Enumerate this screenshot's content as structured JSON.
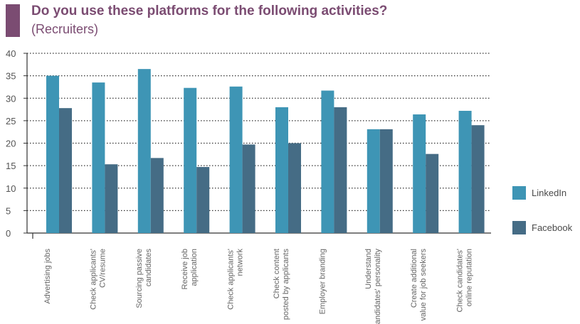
{
  "header": {
    "title": "Do you use these platforms for the following activities?",
    "subtitle": "(Recruiters)"
  },
  "colors": {
    "accent": "#7b4c72",
    "linkedin": "#3e95b5",
    "facebook": "#456c85",
    "axis": "#333333",
    "tick_text": "#555555",
    "category_text": "#666666"
  },
  "chart_data": {
    "type": "bar",
    "categories": [
      "Advertising jobs",
      "Check applicants' CV/resume",
      "Sourcing passive candidates",
      "Receive job application",
      "Check applicants' network",
      "Check content posted by applicants",
      "Employer branding",
      "Understand candidates' personality",
      "Create additional value for job seekers",
      "Check candidates' online reputation"
    ],
    "category_label_lines": [
      [
        "Advertising jobs"
      ],
      [
        "Check applicants'",
        "CV/resume"
      ],
      [
        "Sourcing passive",
        "candidates"
      ],
      [
        "Receive job",
        "application"
      ],
      [
        "Check applicants'",
        "network"
      ],
      [
        "Check content",
        "posted by applicants"
      ],
      [
        "Employer branding"
      ],
      [
        "Understand",
        "candidates' personality"
      ],
      [
        "Create additional",
        "value for job seekers"
      ],
      [
        "Check candidates'",
        "online reputation"
      ]
    ],
    "series": [
      {
        "name": "LinkedIn",
        "values": [
          35,
          33.5,
          36.5,
          32.3,
          32.6,
          28,
          31.7,
          23.1,
          26.4,
          27.2
        ]
      },
      {
        "name": "Facebook",
        "values": [
          27.8,
          15.3,
          16.7,
          14.7,
          19.7,
          20,
          28,
          23.1,
          17.6,
          24
        ]
      }
    ],
    "ylim": [
      0,
      40
    ],
    "yticks": [
      0,
      5,
      10,
      15,
      20,
      25,
      30,
      35,
      40
    ],
    "grid": true,
    "legend_position": "right"
  }
}
